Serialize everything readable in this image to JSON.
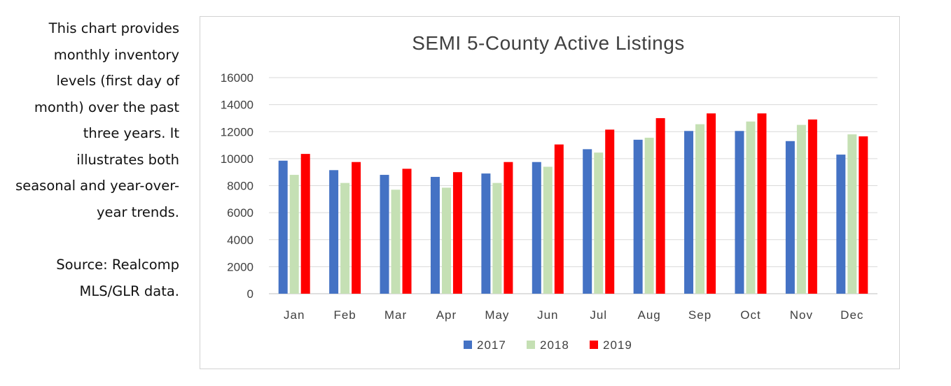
{
  "description": {
    "text": "This chart provides monthly inventory levels (first day of month) over the past three years. It illustrates both seasonal and year-over-year  trends.",
    "source": "Source: Realcomp MLS/GLR data."
  },
  "chart_data": {
    "type": "bar",
    "title": "SEMI 5-County Active Listings",
    "xlabel": "",
    "ylabel": "",
    "ylim": [
      0,
      16000
    ],
    "yticks": [
      "0",
      "2000",
      "4000",
      "6000",
      "8000",
      "10000",
      "12000",
      "14000",
      "16000"
    ],
    "grid": true,
    "legend_position": "bottom",
    "categories": [
      "Jan",
      "Feb",
      "Mar",
      "Apr",
      "May",
      "Jun",
      "Jul",
      "Aug",
      "Sep",
      "Oct",
      "Nov",
      "Dec"
    ],
    "series": [
      {
        "name": "2017",
        "color": "#4472c4",
        "values": [
          9850,
          9150,
          8800,
          8650,
          8900,
          9750,
          10700,
          11400,
          12050,
          12050,
          11300,
          10300
        ]
      },
      {
        "name": "2018",
        "color": "#c5e0b4",
        "values": [
          8800,
          8200,
          7700,
          7850,
          8200,
          9400,
          10450,
          11550,
          12550,
          12750,
          12500,
          11800
        ]
      },
      {
        "name": "2019",
        "color": "#ff0000",
        "values": [
          10350,
          9750,
          9250,
          9000,
          9750,
          11050,
          12150,
          13000,
          13350,
          13350,
          12900,
          11650
        ]
      }
    ]
  }
}
